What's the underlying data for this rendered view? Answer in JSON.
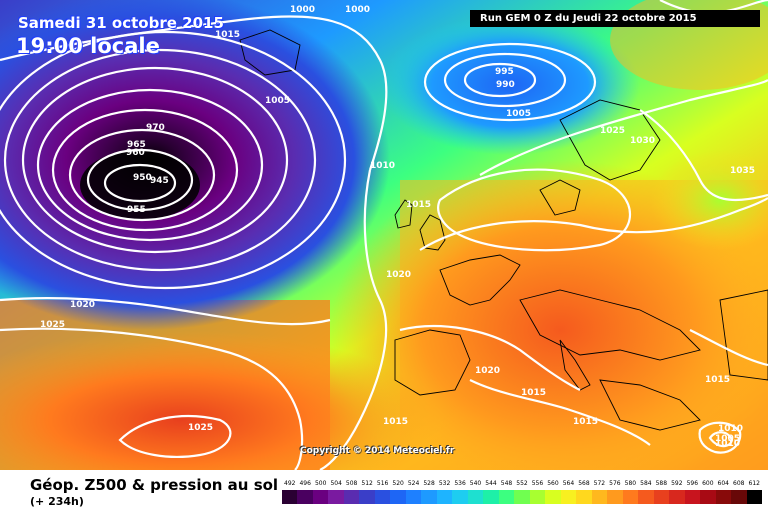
{
  "header": {
    "date": "Samedi 31 octobre 2015",
    "time": "19:00 locale",
    "run": "Run GEM 0 Z du Jeudi 22 octobre 2015"
  },
  "copyright": "Copyright © 2014 Meteociel.fr",
  "footer": {
    "title": "Géop. Z500 & pression au sol",
    "forecast_hour": "(+ 234h)"
  },
  "color_scale": {
    "labels": [
      "492",
      "496",
      "500",
      "504",
      "508",
      "512",
      "516",
      "520",
      "524",
      "528",
      "532",
      "536",
      "540",
      "544",
      "548",
      "552",
      "556",
      "560",
      "564",
      "568",
      "572",
      "576",
      "580",
      "584",
      "588",
      "592",
      "596",
      "600",
      "604",
      "608",
      "612"
    ],
    "colors": [
      "#2a0033",
      "#4a0060",
      "#6a0080",
      "#7a1aa0",
      "#5a2cb0",
      "#3a3ec8",
      "#2a50e0",
      "#1e66f5",
      "#1e80ff",
      "#1e9aff",
      "#1eb4ff",
      "#1ecdf0",
      "#1ee0d0",
      "#1ef0a8",
      "#3cff80",
      "#70ff50",
      "#a8ff30",
      "#d8ff20",
      "#f8f020",
      "#ffd81e",
      "#ffb81e",
      "#ff9a1e",
      "#ff7a1e",
      "#f55a1e",
      "#e8401e",
      "#d8281e",
      "#c8141e",
      "#a80a14",
      "#880a0a",
      "#680808",
      "#000000"
    ]
  },
  "isobars": [
    {
      "value": "1000",
      "label": "1000"
    },
    {
      "value": "1000",
      "label": "1000"
    },
    {
      "value": "1015",
      "label": "1015"
    },
    {
      "value": "995",
      "label": "995"
    },
    {
      "value": "990",
      "label": "990"
    },
    {
      "value": "1005",
      "label": "1005"
    },
    {
      "value": "1005",
      "label": "1005"
    },
    {
      "value": "1025",
      "label": "1025"
    },
    {
      "value": "1030",
      "label": "1030"
    },
    {
      "value": "1035",
      "label": "1035"
    },
    {
      "value": "1010",
      "label": "1010"
    },
    {
      "value": "965",
      "label": "965"
    },
    {
      "value": "950",
      "label": "950"
    },
    {
      "value": "945",
      "label": "945"
    },
    {
      "value": "955",
      "label": "955"
    },
    {
      "value": "960",
      "label": "960"
    },
    {
      "value": "970",
      "label": "970"
    },
    {
      "value": "1015",
      "label": "1015"
    },
    {
      "value": "1020",
      "label": "1020"
    },
    {
      "value": "1020",
      "label": "1020"
    },
    {
      "value": "1025",
      "label": "1025"
    },
    {
      "value": "1020",
      "label": "1020"
    },
    {
      "value": "1015",
      "label": "1015"
    },
    {
      "value": "1015",
      "label": "1015"
    },
    {
      "value": "1015",
      "label": "1015"
    },
    {
      "value": "1015",
      "label": "1015"
    },
    {
      "value": "1025",
      "label": "1025"
    },
    {
      "value": "1010",
      "label": "1010"
    },
    {
      "value": "1005",
      "label": "1005"
    },
    {
      "value": "1010",
      "label": "1010"
    }
  ]
}
